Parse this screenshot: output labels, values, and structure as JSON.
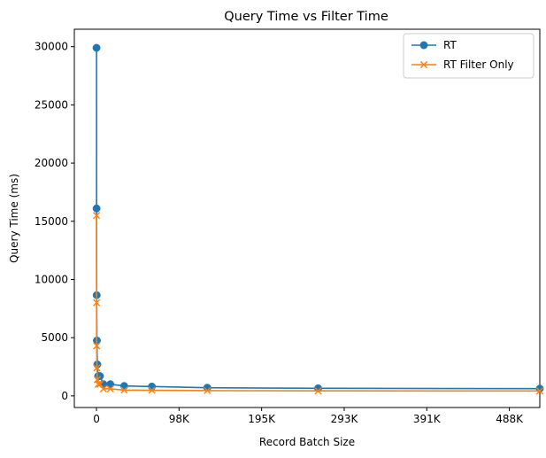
{
  "chart_data": {
    "type": "line",
    "title": "Query Time vs Filter Time",
    "xlabel": "Record Batch Size",
    "ylabel": "Query Time (ms)",
    "xlim": [
      -26180,
      524288
    ],
    "ylim": [
      -1000,
      31500
    ],
    "x_ticks": [
      {
        "value": 0,
        "label": "0"
      },
      {
        "value": 97656,
        "label": "98K"
      },
      {
        "value": 195313,
        "label": "195K"
      },
      {
        "value": 292969,
        "label": "293K"
      },
      {
        "value": 390625,
        "label": "391K"
      },
      {
        "value": 488281,
        "label": "488K"
      }
    ],
    "y_ticks": [
      {
        "value": 0,
        "label": "0"
      },
      {
        "value": 5000,
        "label": "5000"
      },
      {
        "value": 10000,
        "label": "10000"
      },
      {
        "value": 15000,
        "label": "15000"
      },
      {
        "value": 20000,
        "label": "20000"
      },
      {
        "value": 25000,
        "label": "25000"
      },
      {
        "value": 30000,
        "label": "30000"
      }
    ],
    "x": [
      64,
      128,
      256,
      512,
      1024,
      2048,
      4096,
      8192,
      16384,
      32768,
      65536,
      131072,
      262144,
      524288
    ],
    "series": [
      {
        "name": "RT",
        "color": "#1f77b4",
        "marker": "circle",
        "values": [
          29900,
          16100,
          8650,
          4750,
          2700,
          1700,
          1700,
          1000,
          1000,
          850,
          800,
          700,
          650,
          620
        ]
      },
      {
        "name": "RT Filter Only",
        "color": "#ff7f0e",
        "marker": "x",
        "values": [
          15500,
          8000,
          4300,
          2400,
          1400,
          1000,
          1000,
          600,
          600,
          500,
          480,
          450,
          430,
          420
        ]
      }
    ],
    "grid": false,
    "legend_position": "top-right"
  }
}
